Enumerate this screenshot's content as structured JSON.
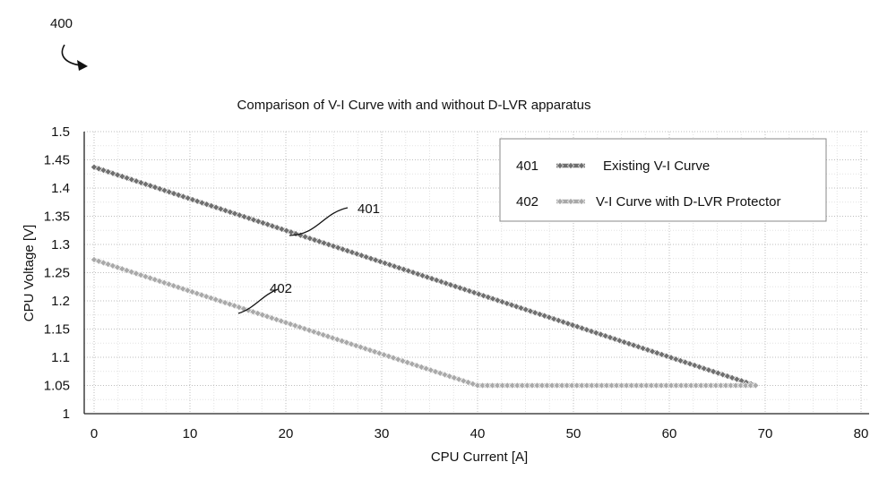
{
  "figure": {
    "ref_number": "400"
  },
  "chart_data": {
    "type": "line",
    "title": "Comparison of V-I Curve with and without D-LVR apparatus",
    "xlabel": "CPU Current [A]",
    "ylabel": "CPU Voltage [V]",
    "xlim": [
      0,
      80
    ],
    "ylim": [
      1,
      1.5
    ],
    "x_ticks": [
      "0",
      "10",
      "20",
      "30",
      "40",
      "50",
      "60",
      "70",
      "80"
    ],
    "y_ticks": [
      "1",
      "1.05",
      "1.1",
      "1.15",
      "1.2",
      "1.25",
      "1.3",
      "1.35",
      "1.4",
      "1.45",
      "1.5"
    ],
    "grid": true,
    "legend_position": "top-right",
    "series": [
      {
        "ref": "401",
        "name": "Existing V-I Curve",
        "color": "#6f6f6f",
        "x": [
          0,
          69
        ],
        "y": [
          1.437,
          1.05
        ]
      },
      {
        "ref": "402",
        "name": "V-I Curve with D-LVR Protector",
        "color": "#a9a9a9",
        "x": [
          0,
          40,
          69
        ],
        "y": [
          1.273,
          1.05,
          1.05
        ]
      }
    ],
    "annotations": [
      {
        "label": "401",
        "series": "401"
      },
      {
        "label": "402",
        "series": "402"
      }
    ]
  }
}
